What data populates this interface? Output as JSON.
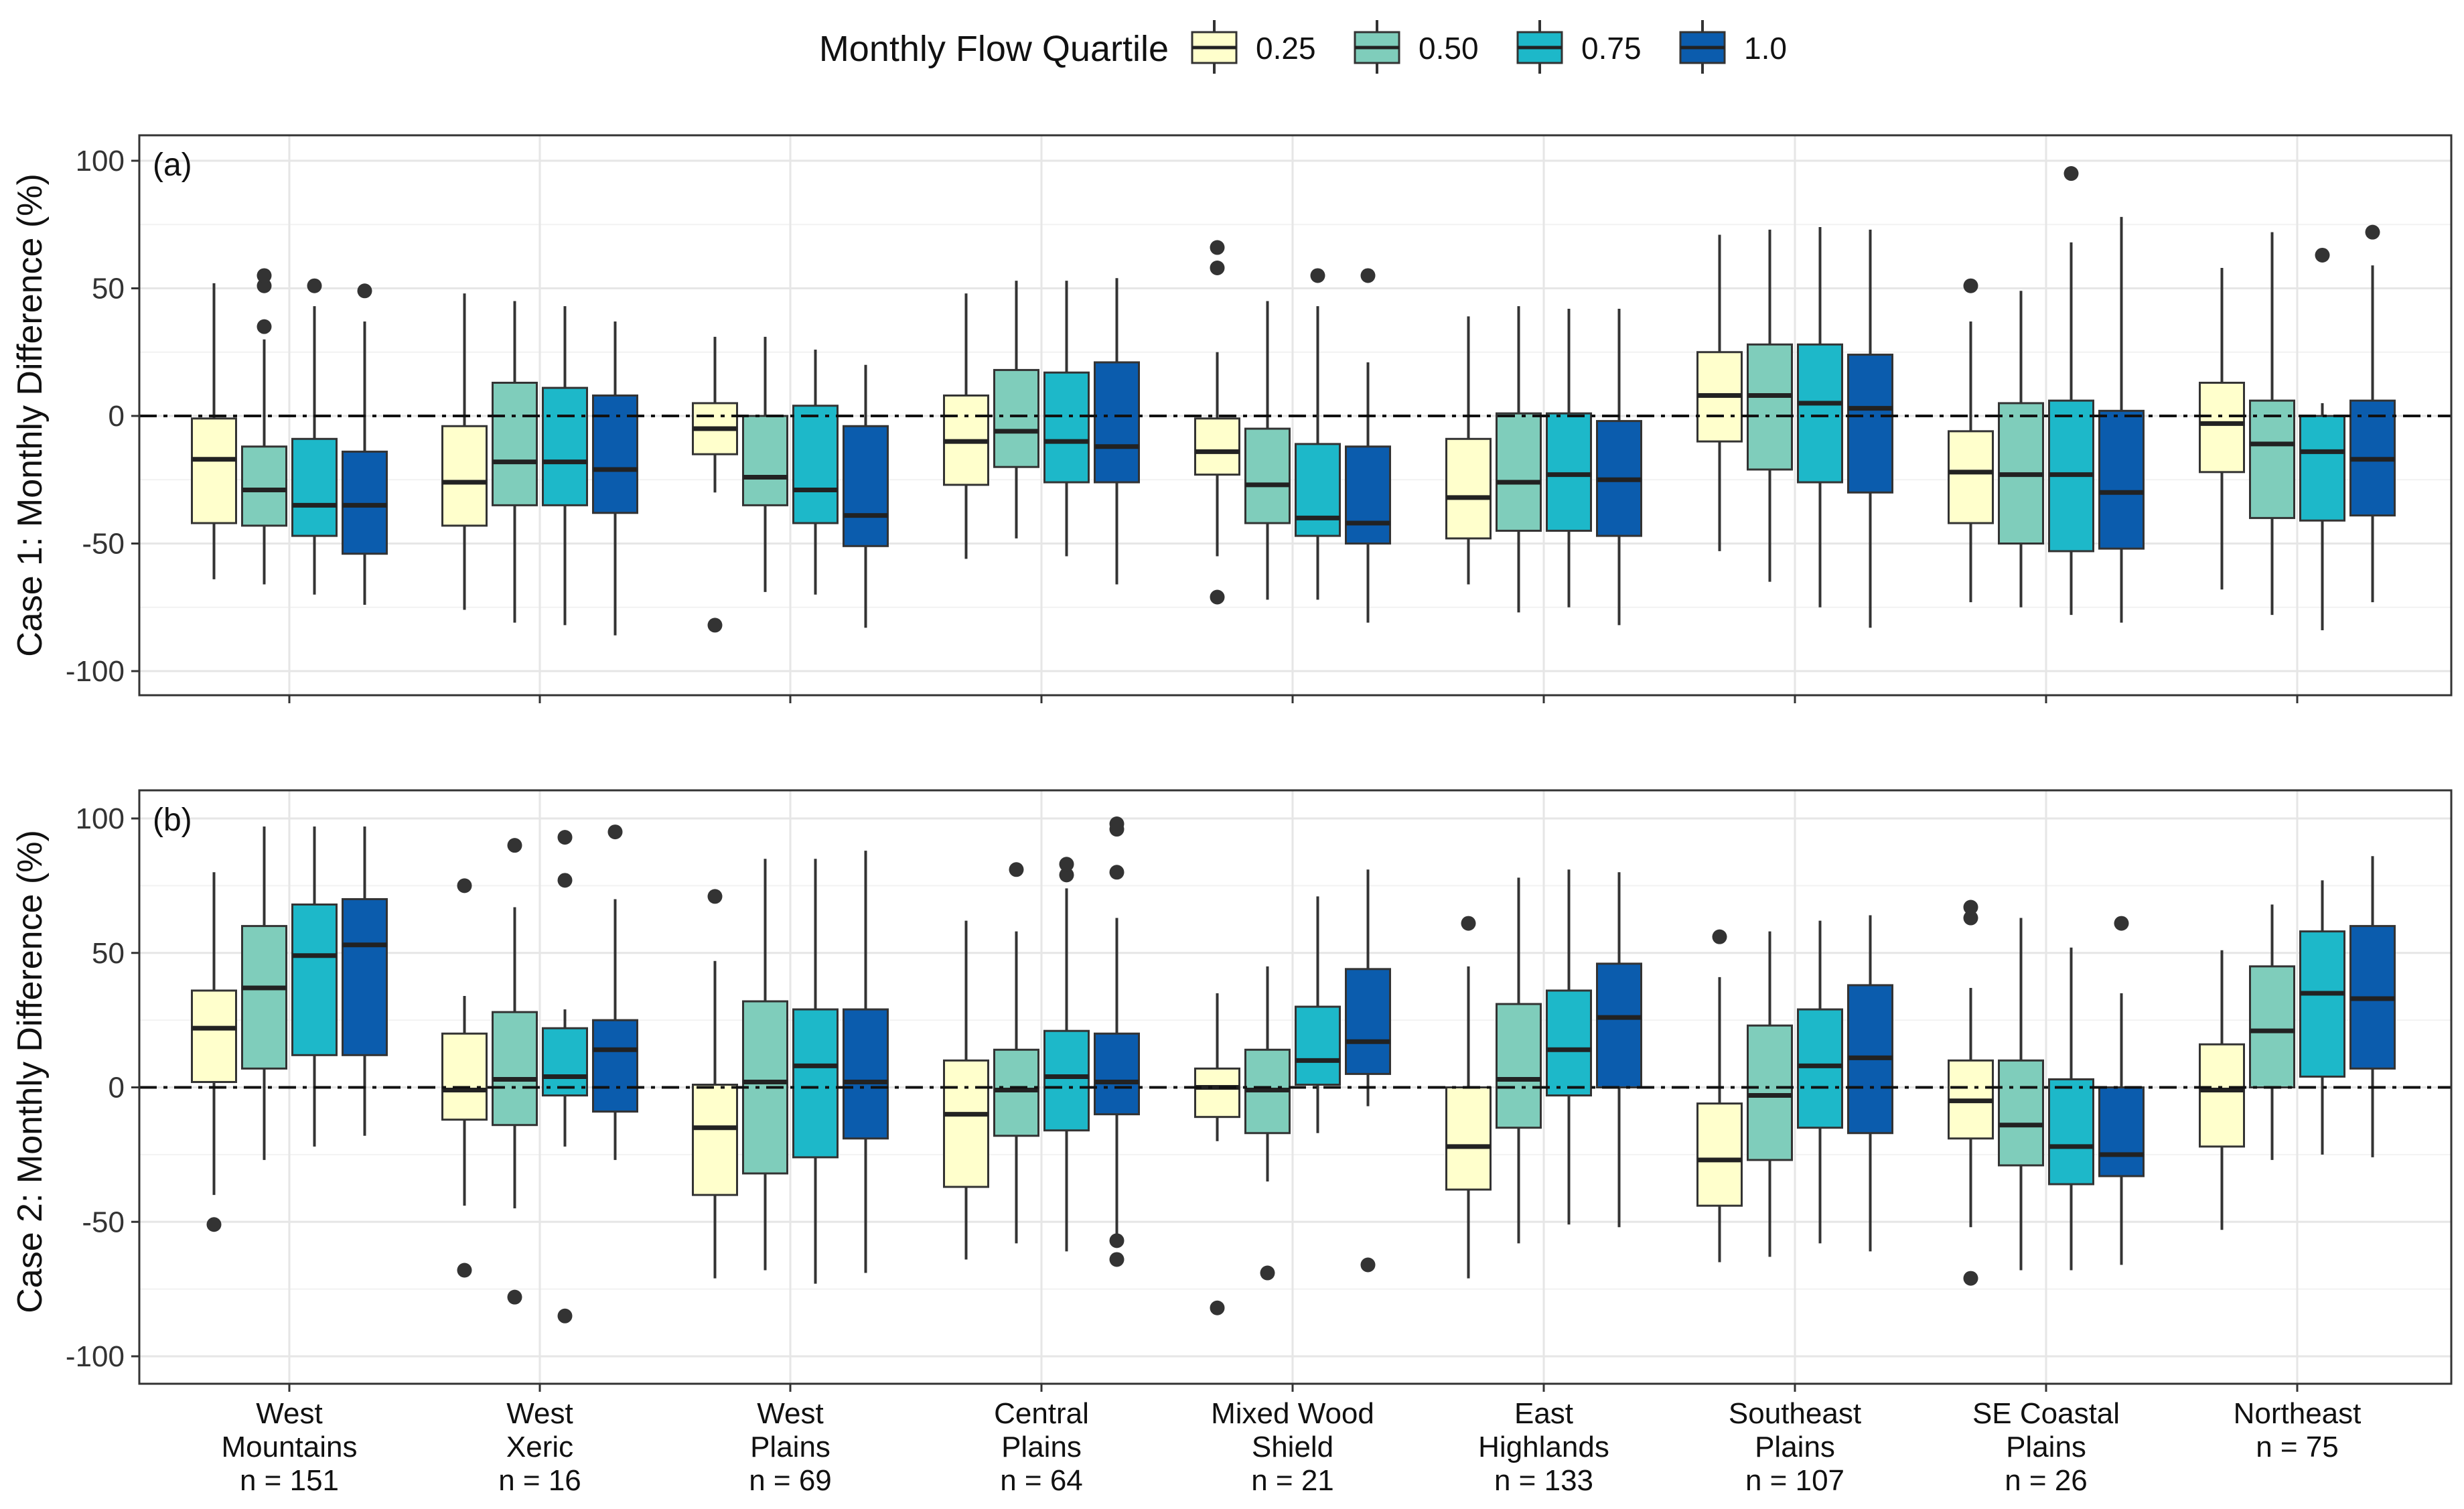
{
  "legend": {
    "title": "Monthly Flow Quartile",
    "entries": [
      "0.25",
      "0.50",
      "0.75",
      "1.0"
    ]
  },
  "chart_data": {
    "type": "boxplot",
    "series_colors": [
      "#FFFFCC",
      "#7FCDBB",
      "#1DB8C9",
      "#0B5CAD"
    ],
    "categories": [
      {
        "line1": "West",
        "line2": "Mountains",
        "n": "n = 151"
      },
      {
        "line1": "West",
        "line2": "Xeric",
        "n": "n = 16"
      },
      {
        "line1": "West",
        "line2": "Plains",
        "n": "n = 69"
      },
      {
        "line1": "Central",
        "line2": "Plains",
        "n": "n = 64"
      },
      {
        "line1": "Mixed Wood",
        "line2": "Shield",
        "n": "n = 21"
      },
      {
        "line1": "East",
        "line2": "Highlands",
        "n": "n = 133"
      },
      {
        "line1": "Southeast",
        "line2": "Plains",
        "n": "n = 107"
      },
      {
        "line1": "SE Coastal",
        "line2": "Plains",
        "n": "n = 26"
      },
      {
        "line1": "Northeast",
        "line2": "n = 75",
        "n": ""
      }
    ],
    "ylim": [
      -110,
      110
    ],
    "yticks": [
      "100",
      "50",
      "0",
      "-50",
      "-100"
    ],
    "panels": [
      {
        "tag": "(a)",
        "ylabel": "Case 1: Monthly Difference (%)",
        "boxes": [
          [
            [
              -64,
              -42,
              -17,
              -1,
              52,
              []
            ],
            [
              -66,
              -43,
              -29,
              -12,
              30,
              [
                35,
                51,
                55
              ]
            ],
            [
              -70,
              -47,
              -35,
              -9,
              43,
              [
                51
              ]
            ],
            [
              -74,
              -54,
              -35,
              -14,
              37,
              [
                49
              ]
            ]
          ],
          [
            [
              -76,
              -43,
              -26,
              -4,
              48,
              []
            ],
            [
              -81,
              -35,
              -18,
              13,
              45,
              []
            ],
            [
              -82,
              -35,
              -18,
              11,
              43,
              []
            ],
            [
              -86,
              -38,
              -21,
              8,
              37,
              []
            ]
          ],
          [
            [
              -30,
              -15,
              -5,
              5,
              31,
              [
                -82
              ]
            ],
            [
              -69,
              -35,
              -24,
              0,
              31,
              []
            ],
            [
              -70,
              -42,
              -29,
              4,
              26,
              []
            ],
            [
              -83,
              -51,
              -39,
              -4,
              20,
              []
            ]
          ],
          [
            [
              -56,
              -27,
              -10,
              8,
              48,
              []
            ],
            [
              -48,
              -20,
              -6,
              18,
              53,
              []
            ],
            [
              -55,
              -26,
              -10,
              17,
              53,
              []
            ],
            [
              -66,
              -26,
              -12,
              21,
              54,
              []
            ]
          ],
          [
            [
              -55,
              -23,
              -14,
              -1,
              25,
              [
                -71,
                58,
                66
              ]
            ],
            [
              -72,
              -42,
              -27,
              -5,
              45,
              []
            ],
            [
              -72,
              -47,
              -40,
              -11,
              43,
              [
                55
              ]
            ],
            [
              -81,
              -50,
              -42,
              -12,
              21,
              [
                55
              ]
            ]
          ],
          [
            [
              -66,
              -48,
              -32,
              -9,
              39,
              []
            ],
            [
              -77,
              -45,
              -26,
              1,
              43,
              []
            ],
            [
              -75,
              -45,
              -23,
              1,
              42,
              []
            ],
            [
              -82,
              -47,
              -25,
              -2,
              42,
              []
            ]
          ],
          [
            [
              -53,
              -10,
              8,
              25,
              71,
              []
            ],
            [
              -65,
              -21,
              8,
              28,
              73,
              []
            ],
            [
              -75,
              -26,
              5,
              28,
              74,
              []
            ],
            [
              -83,
              -30,
              3,
              24,
              73,
              []
            ]
          ],
          [
            [
              -73,
              -42,
              -22,
              -6,
              37,
              [
                51
              ]
            ],
            [
              -75,
              -50,
              -23,
              5,
              49,
              []
            ],
            [
              -78,
              -53,
              -23,
              6,
              68,
              [
                95
              ]
            ],
            [
              -81,
              -52,
              -30,
              2,
              78,
              []
            ]
          ],
          [
            [
              -68,
              -22,
              -3,
              13,
              58,
              []
            ],
            [
              -78,
              -40,
              -11,
              6,
              72,
              []
            ],
            [
              -84,
              -41,
              -14,
              0,
              5,
              [
                63
              ]
            ],
            [
              -73,
              -39,
              -17,
              6,
              59,
              [
                72
              ]
            ]
          ]
        ]
      },
      {
        "tag": "(b)",
        "ylabel": "Case 2: Monthly Difference (%)",
        "boxes": [
          [
            [
              -40,
              2,
              22,
              36,
              80,
              [
                -51
              ]
            ],
            [
              -27,
              7,
              37,
              60,
              97,
              []
            ],
            [
              -22,
              12,
              49,
              68,
              97,
              []
            ],
            [
              -18,
              12,
              53,
              70,
              97,
              []
            ]
          ],
          [
            [
              -44,
              -12,
              -1,
              20,
              34,
              [
                -68,
                75
              ]
            ],
            [
              -45,
              -14,
              3,
              28,
              67,
              [
                -78,
                90
              ]
            ],
            [
              -22,
              -3,
              4,
              22,
              29,
              [
                -85,
                77,
                93
              ]
            ],
            [
              -27,
              -9,
              14,
              25,
              70,
              [
                95
              ]
            ]
          ],
          [
            [
              -71,
              -40,
              -15,
              1,
              47,
              [
                71
              ]
            ],
            [
              -68,
              -32,
              2,
              32,
              85,
              []
            ],
            [
              -73,
              -26,
              8,
              29,
              85,
              []
            ],
            [
              -69,
              -19,
              2,
              29,
              88,
              []
            ]
          ],
          [
            [
              -64,
              -37,
              -10,
              10,
              62,
              []
            ],
            [
              -58,
              -18,
              -1,
              14,
              58,
              [
                81
              ]
            ],
            [
              -61,
              -16,
              4,
              21,
              74,
              [
                79,
                83
              ]
            ],
            [
              -55,
              -10,
              2,
              20,
              63,
              [
                -64,
                -57,
                80,
                96,
                98
              ]
            ]
          ],
          [
            [
              -20,
              -11,
              0,
              7,
              35,
              [
                -82
              ]
            ],
            [
              -35,
              -17,
              -1,
              14,
              45,
              [
                -69
              ]
            ],
            [
              -17,
              1,
              10,
              30,
              71,
              []
            ],
            [
              -7,
              5,
              17,
              44,
              81,
              [
                -66
              ]
            ]
          ],
          [
            [
              -71,
              -38,
              -22,
              0,
              45,
              [
                61
              ]
            ],
            [
              -58,
              -15,
              3,
              31,
              78,
              []
            ],
            [
              -51,
              -3,
              14,
              36,
              81,
              []
            ],
            [
              -52,
              0,
              26,
              46,
              80,
              []
            ]
          ],
          [
            [
              -65,
              -44,
              -27,
              -6,
              41,
              [
                56
              ]
            ],
            [
              -63,
              -27,
              -3,
              23,
              58,
              []
            ],
            [
              -58,
              -15,
              8,
              29,
              62,
              []
            ],
            [
              -61,
              -17,
              11,
              38,
              64,
              []
            ]
          ],
          [
            [
              -52,
              -19,
              -5,
              10,
              37,
              [
                -71,
                63,
                67
              ]
            ],
            [
              -68,
              -29,
              -14,
              10,
              63,
              []
            ],
            [
              -68,
              -36,
              -22,
              3,
              52,
              []
            ],
            [
              -66,
              -33,
              -25,
              0,
              35,
              [
                61
              ]
            ]
          ],
          [
            [
              -53,
              -22,
              -1,
              16,
              51,
              []
            ],
            [
              -27,
              0,
              21,
              45,
              68,
              []
            ],
            [
              -25,
              4,
              35,
              58,
              77,
              []
            ],
            [
              -26,
              7,
              33,
              60,
              86,
              []
            ]
          ]
        ]
      }
    ]
  }
}
